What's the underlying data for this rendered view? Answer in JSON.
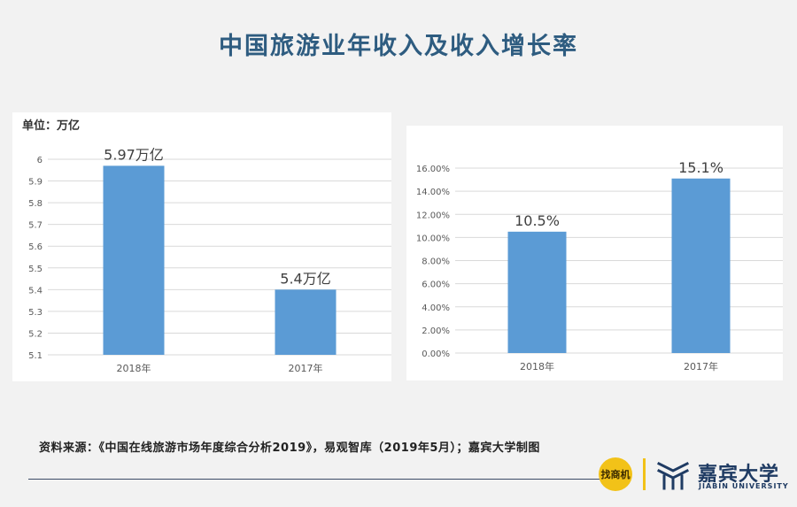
{
  "page": {
    "title": "中国旅游业年收入及收入增长率",
    "source": "资料来源：《中国在线旅游市场年度综合分析2019》，易观智库（2019年5月）；嘉宾大学制图",
    "logo": {
      "badge_text": "找商机",
      "name": "嘉宾大学",
      "subtitle": "JIABIN UNIVERSITY"
    }
  },
  "colors": {
    "bar": "#5b9bd5",
    "title": "#2e5c80",
    "grid": "#d9d9d9",
    "accent": "#f2c218",
    "brand": "#1f3b63"
  },
  "chart_data": [
    {
      "type": "bar",
      "unit_label": "单位：万亿",
      "categories": [
        "2018年",
        "2017年"
      ],
      "values": [
        5.97,
        5.4
      ],
      "data_labels": [
        "5.97万亿",
        "5.4万亿"
      ],
      "yticks": [
        "5.1",
        "5.2",
        "5.3",
        "5.4",
        "5.5",
        "5.6",
        "5.7",
        "5.8",
        "5.9",
        "6"
      ],
      "ylim": [
        5.1,
        6.0
      ],
      "grid": true
    },
    {
      "type": "bar",
      "categories": [
        "2018年",
        "2017年"
      ],
      "values": [
        10.5,
        15.1
      ],
      "data_labels": [
        "10.5%",
        "15.1%"
      ],
      "yticks": [
        "0.00%",
        "2.00%",
        "4.00%",
        "6.00%",
        "8.00%",
        "10.00%",
        "12.00%",
        "14.00%",
        "16.00%"
      ],
      "ylim": [
        0,
        16
      ],
      "grid": true
    }
  ]
}
